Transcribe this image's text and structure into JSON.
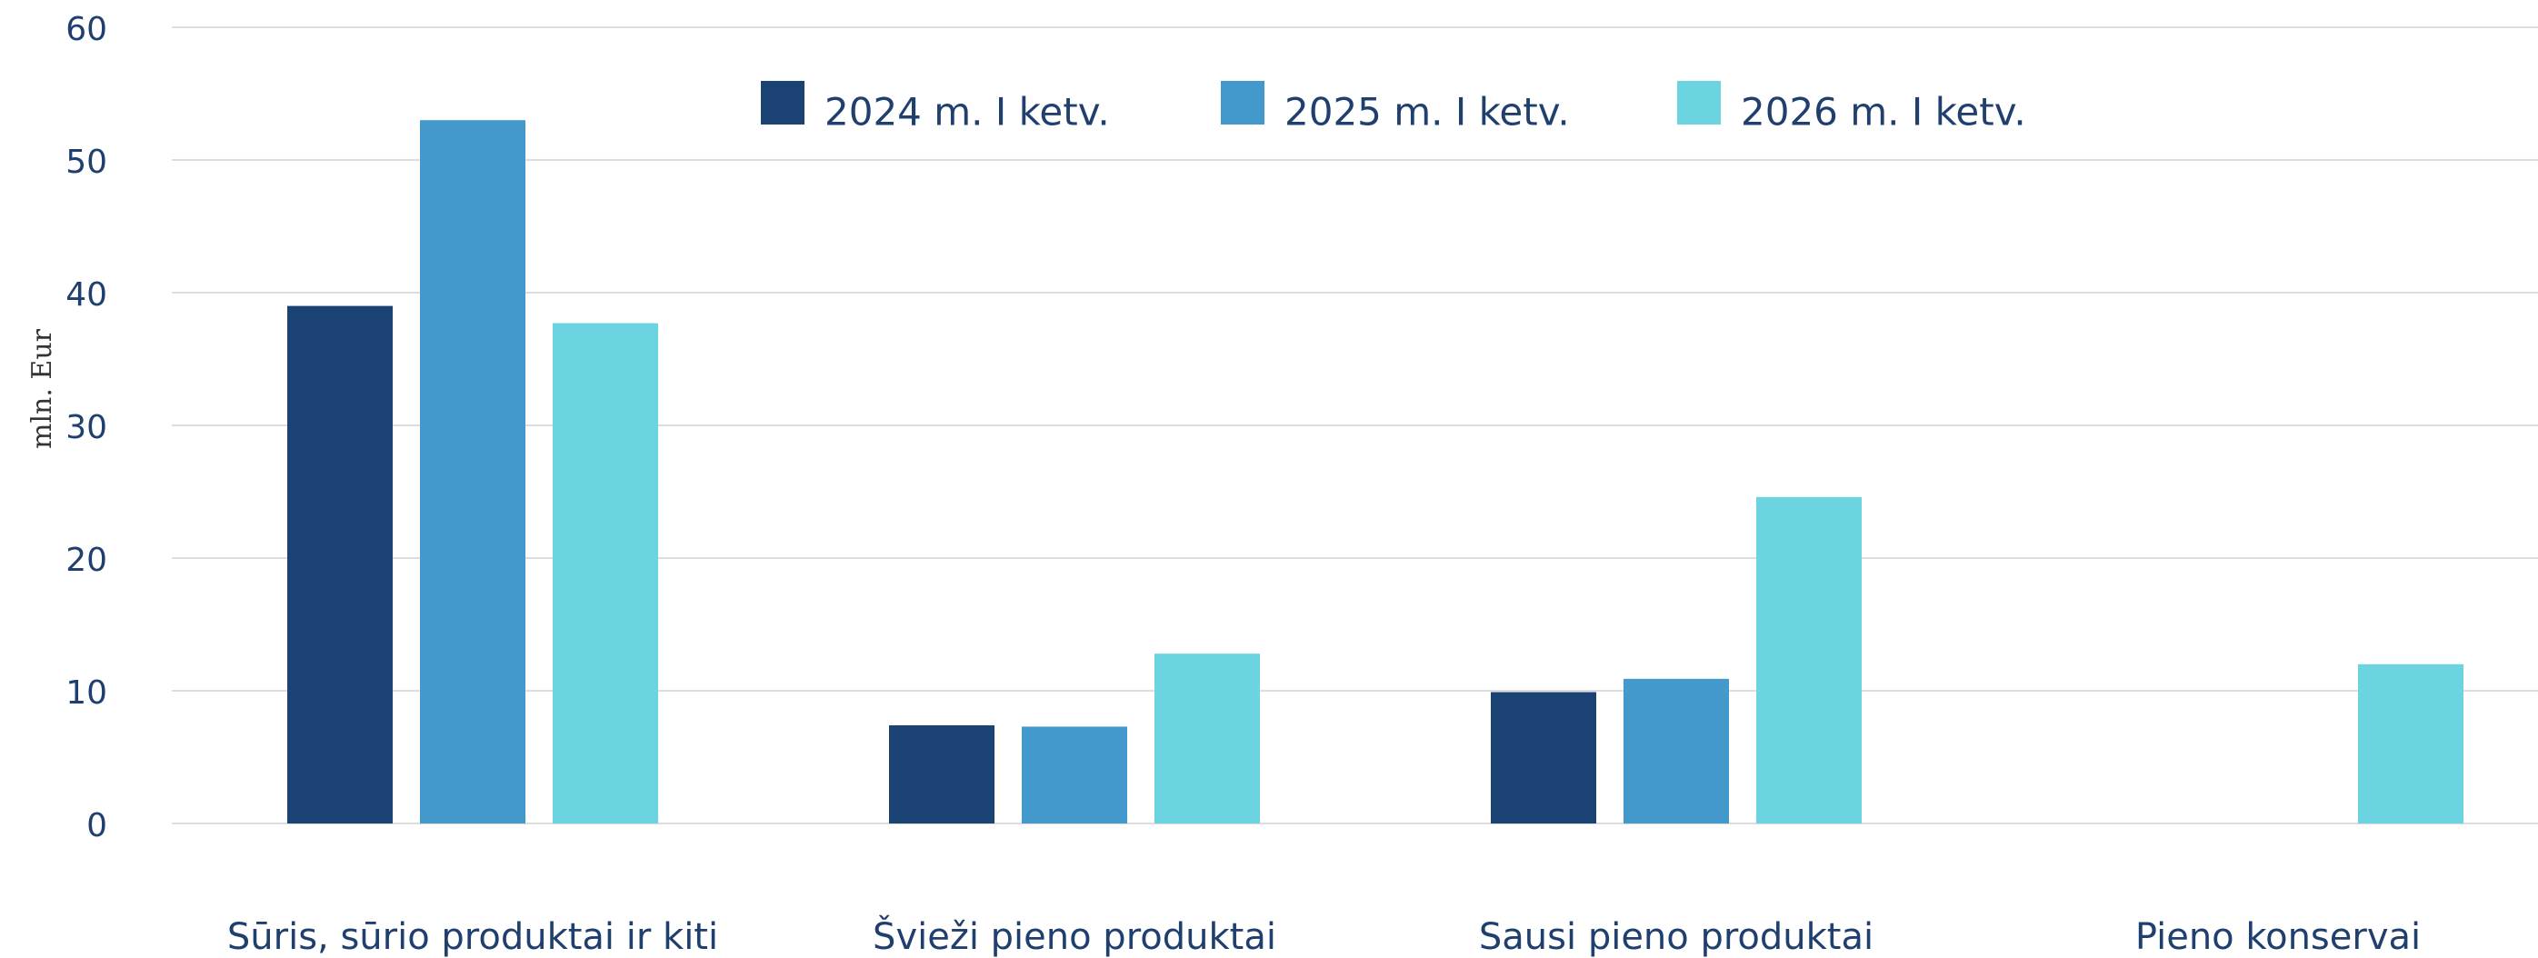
{
  "chart_data": {
    "type": "bar",
    "y_label": "mln. Eur",
    "categories": [
      "Sūris, sūrio produktai ir kiti",
      "Švieži pieno produktai",
      "Sausi pieno produktai",
      "Pieno konservai"
    ],
    "series": [
      {
        "name": "2024 m. I ketv.",
        "color": "#1a4273",
        "values": [
          39,
          7.4,
          9.9,
          0
        ]
      },
      {
        "name": "2025 m. I ketv.",
        "color": "#4499cc",
        "values": [
          53,
          7.3,
          10.9,
          0
        ]
      },
      {
        "name": "2026 m. I ketv.",
        "color": "#6cd4e0",
        "values": [
          37.7,
          12.8,
          24.6,
          12
        ]
      }
    ],
    "ylim": [
      0,
      60
    ],
    "yticks": [
      0,
      10,
      20,
      30,
      40,
      50,
      60
    ],
    "grid": true,
    "legend": "top"
  }
}
